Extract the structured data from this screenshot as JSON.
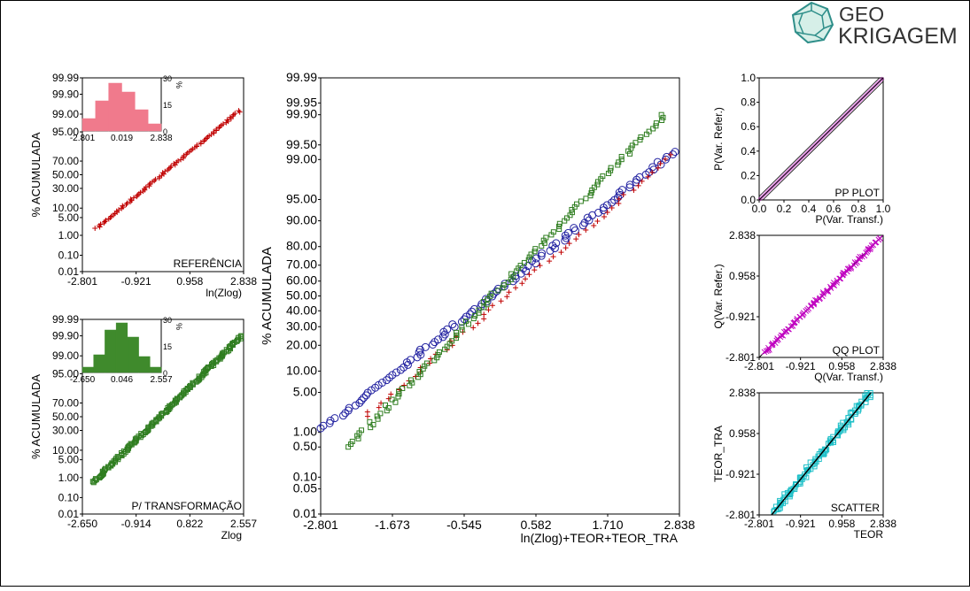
{
  "brand": {
    "line1": "GEO",
    "line2": "KRIGAGEM",
    "color": "#2f8f8a"
  },
  "chart_data": [
    {
      "id": "ref",
      "type": "scatter",
      "label": "REFERÊNCIA",
      "xlabel": "ln(Zlog)",
      "ylabel": "% ACUMULADA",
      "xlim": [
        -2.801,
        2.838
      ],
      "xticks": [
        "-2.801",
        "-0.921",
        "0.958",
        "2.838"
      ],
      "ytick_labels": [
        "99.99",
        "99.90",
        "99.00",
        "95.00",
        "70.00",
        "50.00",
        "30.00",
        "10.00",
        "5.00",
        "1.00",
        "0.10",
        "0.01"
      ],
      "ytick_values": [
        99.99,
        99.9,
        99,
        95,
        70,
        50,
        30,
        10,
        5,
        1,
        0.1,
        0.01
      ],
      "marker": "plus",
      "color": "#c00000",
      "x_start": -2.3,
      "x_end": 2.7,
      "p_start": 2,
      "p_end": 99.3,
      "n": 90,
      "histogram": {
        "xticks": [
          "-2.801",
          "0.019",
          "2.838"
        ],
        "yticks": [
          "0",
          "15",
          "30"
        ],
        "ylabel": "%",
        "ymax": 30,
        "values": [
          7,
          17,
          27,
          22,
          12,
          4
        ],
        "color": "#f07a8c"
      }
    },
    {
      "id": "trans",
      "type": "scatter",
      "label": "P/ TRANSFORMAÇÃO",
      "xlabel": "Zlog",
      "ylabel": "% ACUMULADA",
      "xlim": [
        -2.65,
        2.557
      ],
      "xticks": [
        "-2.650",
        "-0.914",
        "0.822",
        "2.557"
      ],
      "ytick_labels": [
        "99.99",
        "99.90",
        "99.00",
        "95.00",
        "70.00",
        "50.00",
        "30.00",
        "10.00",
        "5.00",
        "1.00",
        "0.10",
        "0.01"
      ],
      "ytick_values": [
        99.99,
        99.9,
        99,
        95,
        70,
        50,
        30,
        10,
        5,
        1,
        0.1,
        0.01
      ],
      "marker": "square",
      "color": "#2e7d1f",
      "x_start": -2.3,
      "x_end": 2.5,
      "p_start": 0.6,
      "p_end": 99.9,
      "n": 160,
      "histogram": {
        "xticks": [
          "-2.650",
          "0.046",
          "2.557"
        ],
        "yticks": [
          "0",
          "15",
          "30"
        ],
        "ylabel": "%",
        "ymax": 30,
        "values": [
          3,
          10,
          24,
          28,
          20,
          9,
          3
        ],
        "color": "#3f8a2c"
      }
    },
    {
      "id": "main",
      "type": "scatter",
      "xlabel": "ln(Zlog)+TEOR+TEOR_TRA",
      "ylabel": "% ACUMULADA",
      "xlim": [
        -2.801,
        2.838
      ],
      "xticks": [
        "-2.801",
        "-1.673",
        "-0.545",
        "0.582",
        "1.710",
        "2.838"
      ],
      "ytick_labels": [
        "99.99",
        "99.95",
        "99.90",
        "99.50",
        "99.00",
        "95.00",
        "90.00",
        "80.00",
        "70.00",
        "60.00",
        "50.00",
        "40.00",
        "30.00",
        "20.00",
        "10.00",
        "5.00",
        "1.00",
        "0.50",
        "0.10",
        "0.05",
        "0.01"
      ],
      "ytick_values": [
        99.99,
        99.95,
        99.9,
        99.5,
        99,
        95,
        90,
        80,
        70,
        60,
        50,
        40,
        30,
        20,
        10,
        5,
        1,
        0.5,
        0.1,
        0.05,
        0.01
      ],
      "series": [
        {
          "marker": "circle",
          "color": "#2020a0",
          "x_start": -2.75,
          "x_end": 2.75,
          "p_start": 1.2,
          "p_end": 99.3,
          "n": 110
        },
        {
          "marker": "plus",
          "color": "#c00000",
          "x_start": -2.1,
          "x_end": 2.75,
          "p_start": 2,
          "p_end": 99.2,
          "n": 60
        },
        {
          "marker": "square",
          "color": "#2e7d1f",
          "x_start": -2.35,
          "x_end": 2.6,
          "p_start": 0.5,
          "p_end": 99.9,
          "n": 120
        }
      ]
    },
    {
      "id": "pp",
      "type": "line",
      "label": "PP PLOT",
      "xlabel": "P(Var. Transf.)",
      "ylabel": "P(Var. Refer.)",
      "xlim": [
        0,
        1
      ],
      "ylim": [
        0,
        1
      ],
      "xticks": [
        "0.0",
        "0.2",
        "0.4",
        "0.6",
        "0.8",
        "1.0"
      ],
      "yticks": [
        "0.0",
        "0.2",
        "0.4",
        "0.6",
        "0.8",
        "1.0"
      ],
      "color": "#c000c0"
    },
    {
      "id": "qq",
      "type": "scatter",
      "label": "QQ PLOT",
      "xlabel": "Q(Var. Transf.)",
      "ylabel": "Q(Var. Refer.)",
      "xlim": [
        -2.801,
        2.838
      ],
      "ylim": [
        -2.801,
        2.838
      ],
      "xticks": [
        "-2.801",
        "-0.921",
        "0.958",
        "2.838"
      ],
      "yticks": [
        "-2.801",
        "-0.921",
        "0.958",
        "2.838"
      ],
      "marker": "x",
      "color": "#c000c0",
      "n": 90
    },
    {
      "id": "scatter",
      "type": "scatter",
      "label": "SCATTER",
      "xlabel": "TEOR",
      "ylabel": "TEOR_TRA",
      "xlim": [
        -2.801,
        2.838
      ],
      "ylim": [
        -2.801,
        2.838
      ],
      "xticks": [
        "-2.801",
        "-0.921",
        "0.958",
        "2.838"
      ],
      "yticks": [
        "-2.801",
        "-0.921",
        "0.958",
        "2.838"
      ],
      "marker": "square",
      "color": "#20c0c8",
      "n": 130
    }
  ]
}
